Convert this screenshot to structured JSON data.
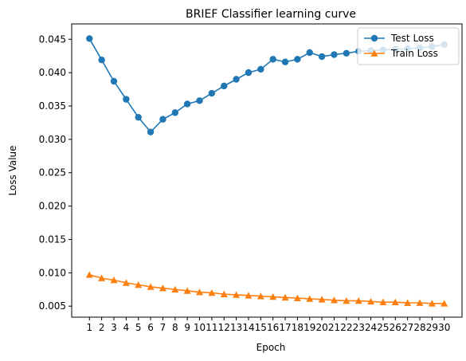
{
  "chart_data": {
    "type": "line",
    "title": "BRIEF Classifier learning curve",
    "xlabel": "Epoch",
    "ylabel": "Loss Value",
    "x": [
      1,
      2,
      3,
      4,
      5,
      6,
      7,
      8,
      9,
      10,
      11,
      12,
      13,
      14,
      15,
      16,
      17,
      18,
      19,
      20,
      21,
      22,
      23,
      24,
      25,
      26,
      27,
      28,
      29,
      30
    ],
    "xlim": [
      -0.45,
      31.45
    ],
    "ylim": [
      0.00335,
      0.0473
    ],
    "yticks": [
      0.005,
      0.01,
      0.015,
      0.02,
      0.025,
      0.03,
      0.035,
      0.04,
      0.045
    ],
    "grid": false,
    "legend_position": "top-right",
    "series": [
      {
        "name": "Test Loss",
        "color": "#1f77b4",
        "marker": "circle",
        "values": [
          0.0451,
          0.0419,
          0.0387,
          0.036,
          0.0333,
          0.0311,
          0.033,
          0.034,
          0.0353,
          0.0358,
          0.0369,
          0.038,
          0.039,
          0.04,
          0.0405,
          0.042,
          0.0416,
          0.042,
          0.043,
          0.0424,
          0.0427,
          0.0429,
          0.0432,
          0.0433,
          0.0434,
          0.0435,
          0.0436,
          0.0437,
          0.0439,
          0.0442
        ]
      },
      {
        "name": "Train Loss",
        "color": "#ff7f0e",
        "marker": "triangle",
        "values": [
          0.0097,
          0.0092,
          0.0089,
          0.0085,
          0.0082,
          0.0079,
          0.0077,
          0.0075,
          0.0073,
          0.0071,
          0.007,
          0.0068,
          0.0067,
          0.0066,
          0.0065,
          0.0064,
          0.0063,
          0.0062,
          0.0061,
          0.006,
          0.0059,
          0.0058,
          0.0058,
          0.0057,
          0.0056,
          0.0056,
          0.0055,
          0.0055,
          0.0054,
          0.0054
        ]
      }
    ]
  }
}
